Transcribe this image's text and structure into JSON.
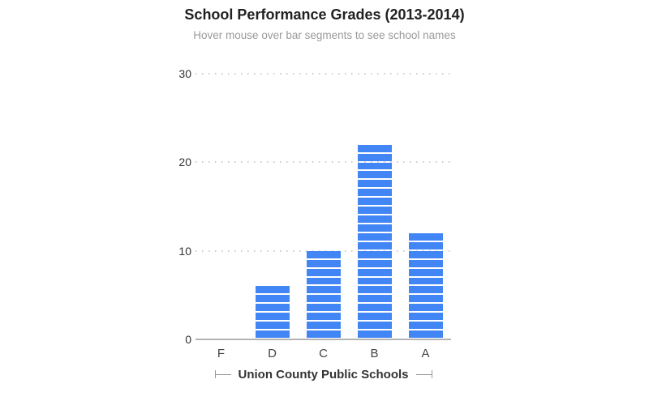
{
  "chart_data": {
    "type": "bar",
    "title": "School Performance Grades (2013-2014)",
    "subtitle": "Hover mouse over bar segments to see school names",
    "categories": [
      "F",
      "D",
      "C",
      "B",
      "A"
    ],
    "values": [
      0,
      6,
      10,
      22,
      12
    ],
    "xlabel": "Union County Public Schools",
    "ylabel": "",
    "ylim": [
      0,
      30
    ],
    "yticks": [
      0,
      10,
      20,
      30
    ],
    "grid": "horizontal dotted gridlines at 10, 20, 30; solid gray baseline at 0",
    "legend": "none",
    "bar_style": "each bar is a stack of unit segments separated by thin white gaps; one segment per school",
    "colors": {
      "bar": "#4285f4",
      "segment_gap": "#ffffff",
      "gridline": "#cccccc",
      "axis_line": "#b3b3b3",
      "title_text": "#212121",
      "subtitle_text": "#9a9a9a",
      "tick_text": "#333333",
      "caption_text": "#333333",
      "caption_marks": "#999999"
    }
  }
}
